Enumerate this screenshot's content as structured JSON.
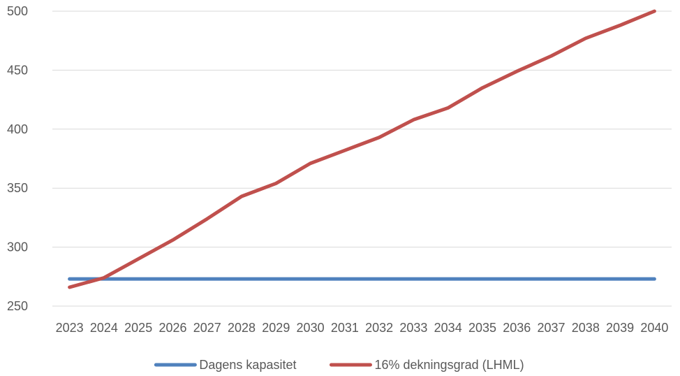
{
  "chart_data": {
    "type": "line",
    "title": "",
    "xlabel": "",
    "ylabel": "",
    "x": [
      "2023",
      "2024",
      "2025",
      "2026",
      "2027",
      "2028",
      "2029",
      "2030",
      "2031",
      "2032",
      "2033",
      "2034",
      "2035",
      "2036",
      "2037",
      "2038",
      "2039",
      "2040"
    ],
    "yticks": [
      250,
      300,
      350,
      400,
      450,
      500
    ],
    "ylim": [
      250,
      500
    ],
    "grid": true,
    "legend_position": "bottom",
    "series": [
      {
        "name": "Dagens kapasitet",
        "color": "#4f81bd",
        "values": [
          273,
          273,
          273,
          273,
          273,
          273,
          273,
          273,
          273,
          273,
          273,
          273,
          273,
          273,
          273,
          273,
          273,
          273
        ]
      },
      {
        "name": "16% dekningsgrad (LHML)",
        "color": "#c0504d",
        "values": [
          266,
          274,
          290,
          306,
          324,
          343,
          354,
          371,
          382,
          393,
          408,
          418,
          435,
          449,
          462,
          477,
          488,
          500
        ]
      }
    ]
  }
}
